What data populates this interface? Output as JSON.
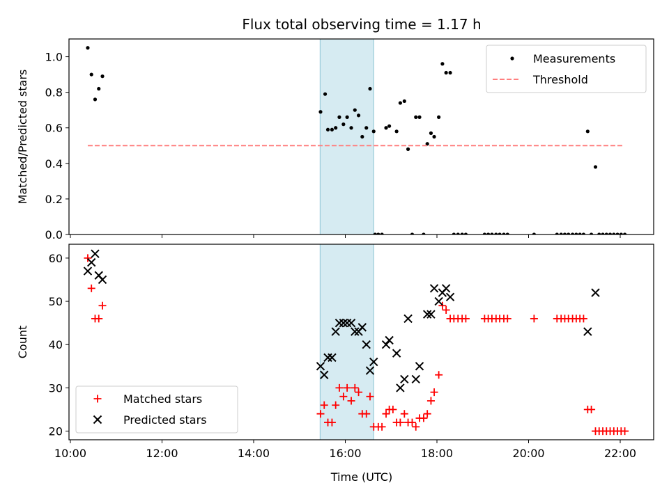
{
  "chart_data": [
    {
      "type": "scatter",
      "title": "Flux total observing time = 1.17 h",
      "xlabel": "",
      "ylabel": "Matched/Predicted stars",
      "xlim": [
        9.97,
        22.73
      ],
      "ylim": [
        0,
        1.1
      ],
      "yticks": [
        0.0,
        0.2,
        0.4,
        0.6,
        0.8,
        1.0
      ],
      "ytick_labels": [
        "0.0",
        "0.2",
        "0.4",
        "0.6",
        "0.8",
        "1.0"
      ],
      "highlight_span": [
        15.45,
        16.62
      ],
      "legend_placement": "top-right",
      "series": [
        {
          "name": "Measurements",
          "kind": "points",
          "color": "#000000",
          "points": [
            [
              10.38,
              1.05
            ],
            [
              10.46,
              0.9
            ],
            [
              10.54,
              0.76
            ],
            [
              10.62,
              0.82
            ],
            [
              10.7,
              0.89
            ],
            [
              15.46,
              0.69
            ],
            [
              15.56,
              0.79
            ],
            [
              15.62,
              0.59
            ],
            [
              15.71,
              0.59
            ],
            [
              15.79,
              0.6
            ],
            [
              15.87,
              0.66
            ],
            [
              15.96,
              0.62
            ],
            [
              16.04,
              0.66
            ],
            [
              16.13,
              0.6
            ],
            [
              16.21,
              0.7
            ],
            [
              16.29,
              0.67
            ],
            [
              16.37,
              0.55
            ],
            [
              16.46,
              0.6
            ],
            [
              16.54,
              0.82
            ],
            [
              16.62,
              0.58
            ],
            [
              16.65,
              0.0
            ],
            [
              16.72,
              0.0
            ],
            [
              16.8,
              0.0
            ],
            [
              16.89,
              0.6
            ],
            [
              16.96,
              0.61
            ],
            [
              17.12,
              0.58
            ],
            [
              17.2,
              0.74
            ],
            [
              17.29,
              0.75
            ],
            [
              17.37,
              0.48
            ],
            [
              17.46,
              0.0
            ],
            [
              17.54,
              0.66
            ],
            [
              17.62,
              0.66
            ],
            [
              17.71,
              0.0
            ],
            [
              17.79,
              0.51
            ],
            [
              17.87,
              0.57
            ],
            [
              17.94,
              0.55
            ],
            [
              18.04,
              0.66
            ],
            [
              18.12,
              0.96
            ],
            [
              18.2,
              0.91
            ],
            [
              18.29,
              0.91
            ],
            [
              18.37,
              0.0
            ],
            [
              18.46,
              0.0
            ],
            [
              18.55,
              0.0
            ],
            [
              18.63,
              0.0
            ],
            [
              19.04,
              0.0
            ],
            [
              19.12,
              0.0
            ],
            [
              19.2,
              0.0
            ],
            [
              19.29,
              0.0
            ],
            [
              19.37,
              0.0
            ],
            [
              19.46,
              0.0
            ],
            [
              19.54,
              0.0
            ],
            [
              20.12,
              0.0
            ],
            [
              20.62,
              0.0
            ],
            [
              20.71,
              0.0
            ],
            [
              20.79,
              0.0
            ],
            [
              20.87,
              0.0
            ],
            [
              20.96,
              0.0
            ],
            [
              21.04,
              0.0
            ],
            [
              21.12,
              0.0
            ],
            [
              21.2,
              0.0
            ],
            [
              21.29,
              0.58
            ],
            [
              21.37,
              0.0
            ],
            [
              21.46,
              0.38
            ],
            [
              21.54,
              0.0
            ],
            [
              21.62,
              0.0
            ],
            [
              21.7,
              0.0
            ],
            [
              21.78,
              0.0
            ],
            [
              21.86,
              0.0
            ],
            [
              21.94,
              0.0
            ],
            [
              22.02,
              0.0
            ],
            [
              22.1,
              0.0
            ]
          ]
        },
        {
          "name": "Threshold",
          "kind": "dashed-line",
          "color": "#ff7f7f",
          "points": [
            [
              10.38,
              0.5
            ],
            [
              22.08,
              0.5
            ]
          ]
        }
      ]
    },
    {
      "type": "scatter",
      "title": "",
      "xlabel": "Time (UTC)",
      "ylabel": "Count",
      "xlim": [
        9.97,
        22.73
      ],
      "ylim": [
        18,
        63.2
      ],
      "yticks": [
        20,
        30,
        40,
        50,
        60
      ],
      "ytick_labels": [
        "20",
        "30",
        "40",
        "50",
        "60"
      ],
      "xticks": [
        10,
        12,
        14,
        16,
        18,
        20,
        22
      ],
      "xtick_labels": [
        "10:00",
        "12:00",
        "14:00",
        "16:00",
        "18:00",
        "20:00",
        "22:00"
      ],
      "highlight_span": [
        15.45,
        16.62
      ],
      "legend_placement": "bottom-left",
      "series": [
        {
          "name": "Matched stars",
          "marker": "plus",
          "color": "#ff0000",
          "points": [
            [
              10.38,
              60
            ],
            [
              10.46,
              53
            ],
            [
              10.54,
              46
            ],
            [
              10.62,
              46
            ],
            [
              10.7,
              49
            ],
            [
              15.46,
              24
            ],
            [
              15.54,
              26
            ],
            [
              15.62,
              22
            ],
            [
              15.71,
              22
            ],
            [
              15.79,
              26
            ],
            [
              15.87,
              30
            ],
            [
              15.96,
              28
            ],
            [
              16.04,
              30
            ],
            [
              16.13,
              27
            ],
            [
              16.21,
              30
            ],
            [
              16.29,
              29
            ],
            [
              16.37,
              24
            ],
            [
              16.46,
              24
            ],
            [
              16.54,
              28
            ],
            [
              16.62,
              21
            ],
            [
              16.72,
              21
            ],
            [
              16.8,
              21
            ],
            [
              16.89,
              24
            ],
            [
              16.96,
              25
            ],
            [
              17.04,
              25
            ],
            [
              17.12,
              22
            ],
            [
              17.2,
              22
            ],
            [
              17.29,
              24
            ],
            [
              17.37,
              22
            ],
            [
              17.46,
              22
            ],
            [
              17.54,
              21
            ],
            [
              17.62,
              23
            ],
            [
              17.71,
              23
            ],
            [
              17.79,
              24
            ],
            [
              17.87,
              27
            ],
            [
              17.94,
              29
            ],
            [
              18.04,
              33
            ],
            [
              18.12,
              49
            ],
            [
              18.2,
              48
            ],
            [
              18.29,
              46
            ],
            [
              18.37,
              46
            ],
            [
              18.46,
              46
            ],
            [
              18.55,
              46
            ],
            [
              18.63,
              46
            ],
            [
              19.04,
              46
            ],
            [
              19.12,
              46
            ],
            [
              19.2,
              46
            ],
            [
              19.29,
              46
            ],
            [
              19.37,
              46
            ],
            [
              19.46,
              46
            ],
            [
              19.54,
              46
            ],
            [
              20.12,
              46
            ],
            [
              20.62,
              46
            ],
            [
              20.71,
              46
            ],
            [
              20.79,
              46
            ],
            [
              20.87,
              46
            ],
            [
              20.96,
              46
            ],
            [
              21.04,
              46
            ],
            [
              21.12,
              46
            ],
            [
              21.2,
              46
            ],
            [
              21.29,
              25
            ],
            [
              21.37,
              25
            ],
            [
              21.46,
              20
            ],
            [
              21.54,
              20
            ],
            [
              21.62,
              20
            ],
            [
              21.7,
              20
            ],
            [
              21.78,
              20
            ],
            [
              21.86,
              20
            ],
            [
              21.94,
              20
            ],
            [
              22.02,
              20
            ],
            [
              22.1,
              20
            ]
          ]
        },
        {
          "name": "Predicted stars",
          "marker": "x",
          "color": "#000000",
          "points": [
            [
              10.38,
              57
            ],
            [
              10.46,
              59
            ],
            [
              10.54,
              61
            ],
            [
              10.62,
              56
            ],
            [
              10.7,
              55
            ],
            [
              15.46,
              35
            ],
            [
              15.54,
              33
            ],
            [
              15.62,
              37
            ],
            [
              15.71,
              37
            ],
            [
              15.79,
              43
            ],
            [
              15.87,
              45
            ],
            [
              15.96,
              45
            ],
            [
              16.04,
              45
            ],
            [
              16.13,
              45
            ],
            [
              16.21,
              43
            ],
            [
              16.29,
              43
            ],
            [
              16.37,
              44
            ],
            [
              16.46,
              40
            ],
            [
              16.54,
              34
            ],
            [
              16.62,
              36
            ],
            [
              16.89,
              40
            ],
            [
              16.96,
              41
            ],
            [
              17.12,
              38
            ],
            [
              17.2,
              30
            ],
            [
              17.29,
              32
            ],
            [
              17.37,
              46
            ],
            [
              17.54,
              32
            ],
            [
              17.62,
              35
            ],
            [
              17.79,
              47
            ],
            [
              17.87,
              47
            ],
            [
              17.94,
              53
            ],
            [
              18.04,
              50
            ],
            [
              18.12,
              52
            ],
            [
              18.2,
              53
            ],
            [
              18.29,
              51
            ],
            [
              21.29,
              43
            ],
            [
              21.46,
              52
            ]
          ]
        }
      ]
    }
  ]
}
